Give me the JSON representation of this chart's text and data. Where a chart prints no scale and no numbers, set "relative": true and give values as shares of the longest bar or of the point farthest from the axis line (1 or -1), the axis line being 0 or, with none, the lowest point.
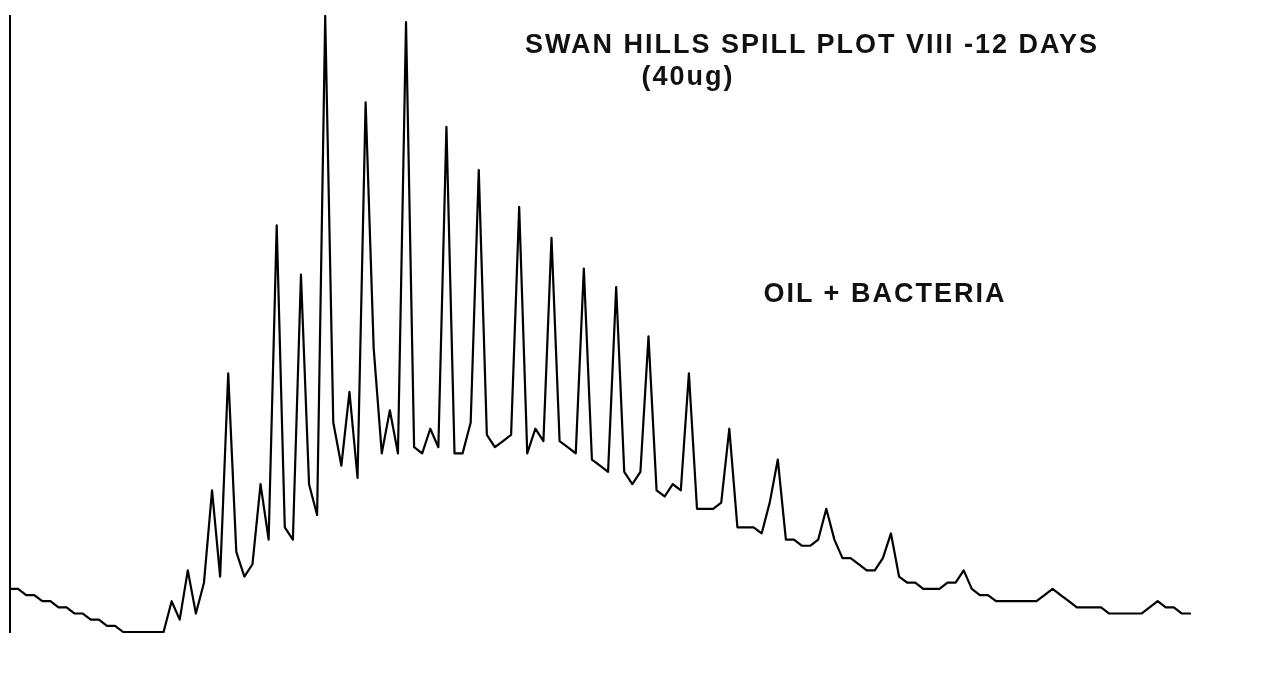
{
  "chart_data": {
    "type": "line",
    "title": "SWAN HILLS SPILL PLOT VIII -12 DAYS",
    "subtitle": "(40ug)",
    "annotations": [
      "OIL + BACTERIA"
    ],
    "relative": true,
    "marker": "none",
    "line_style": "solid",
    "grid": false,
    "legend": false,
    "categories": [
      null,
      null,
      null,
      null,
      null,
      null,
      null,
      null,
      null,
      null,
      null,
      null,
      null,
      null,
      null,
      null,
      null,
      null,
      null,
      null,
      null,
      null,
      null,
      null,
      null,
      null,
      null,
      null,
      null,
      null,
      null,
      null,
      null,
      null,
      null,
      null,
      null,
      null,
      null,
      null,
      null,
      null,
      null,
      null,
      null,
      null,
      null,
      null,
      null,
      null,
      null,
      null,
      null,
      null,
      null,
      null,
      null,
      null,
      null,
      null,
      null,
      null,
      null,
      null,
      null,
      null,
      null,
      null,
      null,
      null,
      null,
      null,
      null,
      null,
      null,
      null,
      null,
      null,
      null,
      null,
      null,
      null,
      null,
      null,
      null,
      null,
      null,
      null,
      null,
      null,
      null,
      null,
      null,
      null,
      null,
      null,
      null,
      null,
      null,
      null,
      null,
      null,
      null,
      null,
      null,
      null,
      null,
      null,
      null,
      null,
      null,
      null,
      null,
      null,
      null,
      null,
      null,
      null,
      null,
      null,
      null,
      null,
      null,
      null,
      null,
      null,
      null,
      null,
      null,
      null,
      null,
      null,
      null,
      null,
      null,
      null,
      null,
      null,
      null,
      null,
      null,
      null,
      null,
      null,
      null,
      null,
      null
    ],
    "series": [
      {
        "color": "#000000",
        "values": [
          0.07,
          0.07,
          0.06,
          0.06,
          0.05,
          0.05,
          0.04,
          0.04,
          0.03,
          0.03,
          0.02,
          0.02,
          0.01,
          0.01,
          0,
          0,
          0,
          0,
          0,
          0,
          0.05,
          0.02,
          0.1,
          0.03,
          0.08,
          0.23,
          0.09,
          0.42,
          0.13,
          0.09,
          0.11,
          0.24,
          0.15,
          0.66,
          0.17,
          0.15,
          0.58,
          0.24,
          0.19,
          1,
          0.34,
          0.27,
          0.39,
          0.25,
          0.86,
          0.46,
          0.29,
          0.36,
          0.29,
          0.99,
          0.3,
          0.29,
          0.33,
          0.3,
          0.82,
          0.29,
          0.29,
          0.34,
          0.75,
          0.32,
          0.3,
          0.31,
          0.32,
          0.69,
          0.29,
          0.33,
          0.31,
          0.64,
          0.31,
          0.3,
          0.29,
          0.59,
          0.28,
          0.27,
          0.26,
          0.56,
          0.26,
          0.24,
          0.26,
          0.48,
          0.23,
          0.22,
          0.24,
          0.23,
          0.42,
          0.2,
          0.2,
          0.2,
          0.21,
          0.33,
          0.17,
          0.17,
          0.17,
          0.16,
          0.21,
          0.28,
          0.15,
          0.15,
          0.14,
          0.14,
          0.15,
          0.2,
          0.15,
          0.12,
          0.12,
          0.11,
          0.1,
          0.1,
          0.12,
          0.16,
          0.09,
          0.08,
          0.08,
          0.07,
          0.07,
          0.07,
          0.08,
          0.08,
          0.1,
          0.07,
          0.06,
          0.06,
          0.05,
          0.05,
          0.05,
          0.05,
          0.05,
          0.05,
          0.06,
          0.07,
          0.06,
          0.05,
          0.04,
          0.04,
          0.04,
          0.04,
          0.03,
          0.03,
          0.03,
          0.03,
          0.03,
          0.04,
          0.05,
          0.04,
          0.04,
          0.03,
          0.03
        ]
      }
    ]
  }
}
